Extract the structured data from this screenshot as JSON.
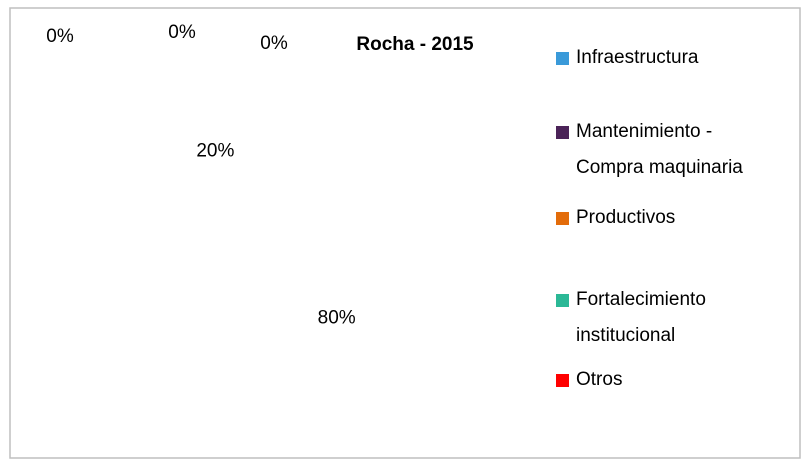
{
  "chart_data": {
    "type": "pie",
    "title": "Rocha - 2015",
    "categories": [
      "Infraestructura",
      "Mantenimiento - Compra maquinaria",
      "Productivos",
      "Fortalecimiento institucional",
      "Otros"
    ],
    "values": [
      80,
      20,
      0,
      0,
      0
    ],
    "value_labels": [
      "80%",
      "20%",
      "0%",
      "0%",
      "0%"
    ],
    "colors": [
      "#3a9ad9",
      "#4b2358",
      "#e36c0a",
      "#2bb896",
      "#ff0000"
    ],
    "legend": "right"
  }
}
